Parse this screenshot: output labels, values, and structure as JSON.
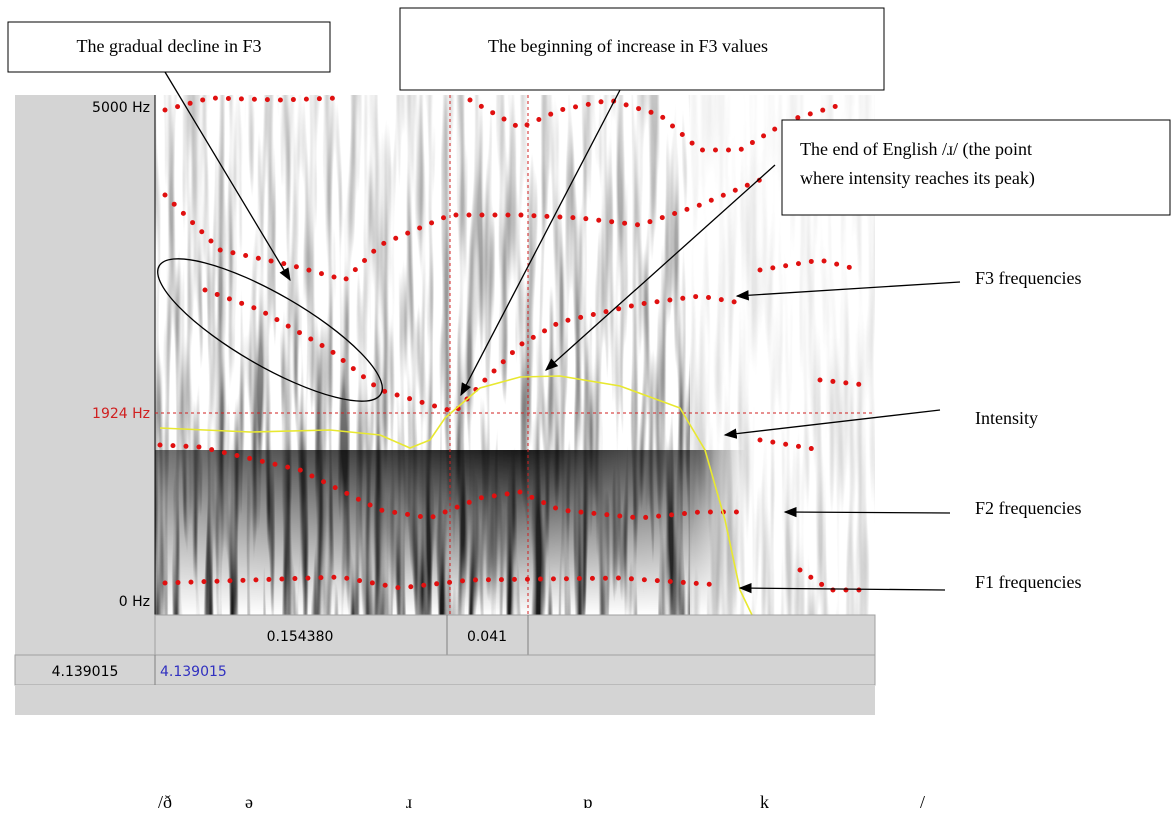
{
  "annotations": [
    {
      "lines": [
        "The gradual decline in F3"
      ]
    },
    {
      "lines": [
        "The beginning of increase in F3 values"
      ]
    },
    {
      "lines": [
        "The end of English /ɹ/ (the point",
        "where intensity reaches its peak)"
      ]
    }
  ],
  "labels": [
    "F3 frequencies",
    "Intensity",
    "F2 frequencies",
    "F1 frequencies"
  ],
  "spectrogram": {
    "freq_top": "5000 Hz",
    "freq_cursor": "1924 Hz",
    "freq_bottom": "0 Hz",
    "durations": [
      "0.154380",
      "0.041"
    ],
    "time_left": "4.139015",
    "time_right": "4.139015"
  },
  "transcription": [
    "/ð",
    "ə",
    "ɹ",
    "ɒ",
    "k",
    "/"
  ]
}
